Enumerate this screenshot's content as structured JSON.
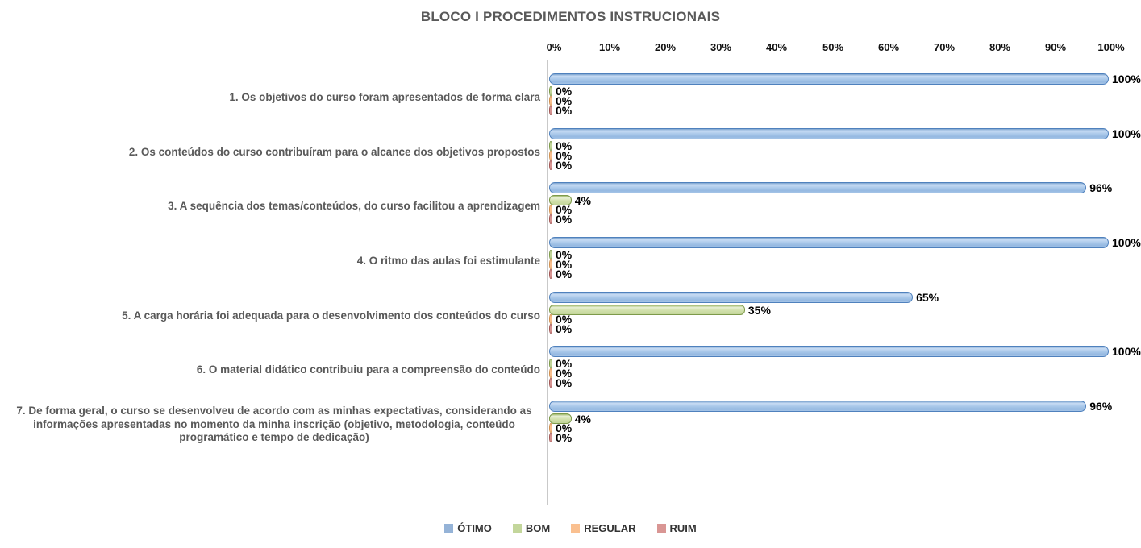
{
  "chart_data": {
    "type": "bar",
    "orientation": "horizontal",
    "title": "BLOCO I PROCEDIMENTOS INSTRUCIONAIS",
    "categories": [
      "1. Os objetivos do curso foram apresentados de forma clara",
      "2. Os conteúdos do curso contribuíram para o alcance dos objetivos propostos",
      "3. A sequência dos temas/conteúdos, do curso facilitou a aprendizagem",
      "4. O ritmo das aulas foi estimulante",
      "5. A carga horária foi adequada para o desenvolvimento dos conteúdos do curso",
      "6. O material didático contribuiu para a compreensão do conteúdo",
      "7. De forma geral, o curso se desenvolveu de acordo com as minhas expectativas, considerando as informações apresentadas no momento da minha inscrição (objetivo, metodologia, conteúdo programático e tempo de dedicação)"
    ],
    "series": [
      {
        "name": "ÓTIMO",
        "color": "#95b3d7",
        "values": [
          100,
          100,
          96,
          100,
          65,
          100,
          96
        ],
        "labels": [
          "100%",
          "100%",
          "96%",
          "100%",
          "65%",
          "100%",
          "96%"
        ]
      },
      {
        "name": "BOM",
        "color": "#c3d69b",
        "values": [
          0,
          0,
          4,
          0,
          35,
          0,
          4
        ],
        "labels": [
          "0%",
          "0%",
          "4%",
          "0%",
          "35%",
          "0%",
          "4%"
        ]
      },
      {
        "name": "REGULAR",
        "color": "#fac090",
        "values": [
          0,
          0,
          0,
          0,
          0,
          0,
          0
        ],
        "labels": [
          "0%",
          "0%",
          "0%",
          "0%",
          "0%",
          "0%",
          "0%"
        ]
      },
      {
        "name": "RUIM",
        "color": "#d99694",
        "values": [
          0,
          0,
          0,
          0,
          0,
          0,
          0
        ],
        "labels": [
          "0%",
          "0%",
          "0%",
          "0%",
          "0%",
          "0%",
          "0%"
        ]
      }
    ],
    "xlim": [
      0,
      100
    ],
    "x_ticks": [
      "0%",
      "10%",
      "20%",
      "30%",
      "40%",
      "50%",
      "60%",
      "70%",
      "80%",
      "90%",
      "100%"
    ],
    "grid": false,
    "data_labels": true,
    "legend_position": "bottom"
  },
  "legend": [
    {
      "label": "ÓTIMO",
      "color": "#95b3d7"
    },
    {
      "label": "BOM",
      "color": "#c3d69b"
    },
    {
      "label": "REGULAR",
      "color": "#fac090"
    },
    {
      "label": "RUIM",
      "color": "#d99694"
    }
  ]
}
